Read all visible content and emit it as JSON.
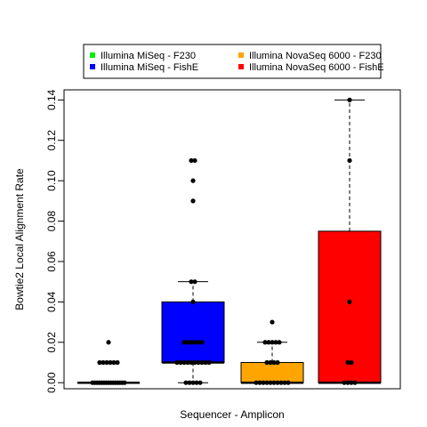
{
  "chart_data": {
    "type": "box",
    "xlabel": "Sequencer - Amplicon",
    "ylabel": "Bowtie2 Local Alignment Rate",
    "ylim": [
      -0.003,
      0.145
    ],
    "yticks": [
      0.0,
      0.02,
      0.04,
      0.06,
      0.08,
      0.1,
      0.12,
      0.14
    ],
    "ytick_labels": [
      "0.00",
      "0.02",
      "0.04",
      "0.06",
      "0.08",
      "0.10",
      "0.12",
      "0.14"
    ],
    "grid": false,
    "legend_position": "top",
    "series": [
      {
        "name": "Illumina MiSeq - F230",
        "color": "#00ee00",
        "box": {
          "min": 0.0,
          "q1": 0.0,
          "median": 0.0,
          "q3": 0.0,
          "max": 0.0
        },
        "points": [
          0.02,
          0.01,
          0.01,
          0.01,
          0.01,
          0.01,
          0.01,
          0,
          0,
          0,
          0,
          0,
          0,
          0,
          0,
          0,
          0,
          0,
          0,
          0,
          0,
          0
        ]
      },
      {
        "name": "Illumina MiSeq - FishE",
        "color": "#0000ff",
        "box": {
          "min": 0.0,
          "q1": 0.01,
          "median": 0.01,
          "q3": 0.04,
          "max": 0.05
        },
        "points": [
          0.11,
          0.11,
          0.1,
          0.09,
          0.05,
          0.05,
          0.04,
          0.02,
          0.02,
          0.02,
          0.02,
          0.02,
          0.02,
          0.01,
          0.01,
          0.01,
          0.01,
          0.01,
          0.01,
          0.01,
          0.01,
          0.01,
          0.01,
          0,
          0,
          0,
          0,
          0
        ]
      },
      {
        "name": "Illumina NovaSeq 6000 - F230",
        "color": "#ffa500",
        "box": {
          "min": 0.0,
          "q1": 0.0,
          "median": 0.0,
          "q3": 0.01,
          "max": 0.02
        },
        "points": [
          0.03,
          0.02,
          0.02,
          0.02,
          0.02,
          0.02,
          0.01,
          0.01,
          0.01,
          0.01,
          0,
          0,
          0,
          0,
          0,
          0,
          0,
          0,
          0,
          0
        ]
      },
      {
        "name": "Illumina NovaSeq 6000 - FishE",
        "color": "#ff0000",
        "box": {
          "min": 0.0,
          "q1": 0.0,
          "median": 0.0,
          "q3": 0.075,
          "max": 0.14
        },
        "points": [
          0.14,
          0.11,
          0.04,
          0.01,
          0.01,
          0,
          0,
          0,
          0
        ]
      }
    ]
  }
}
